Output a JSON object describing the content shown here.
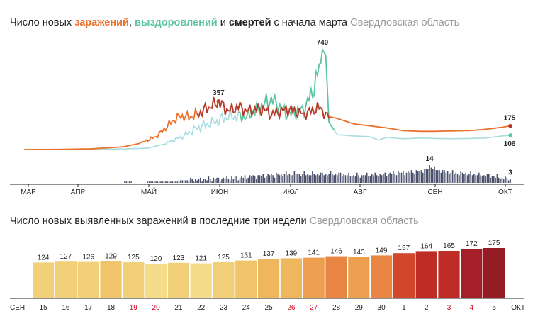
{
  "top": {
    "title_prefix": "Число новых ",
    "infections_word": "заражений",
    "sep1": ", ",
    "recoveries_word": "выздоровлений",
    "sep2": " и ",
    "deaths_word": "смертей",
    "title_suffix": " с начала марта",
    "region": "Свердловская область"
  },
  "bottom": {
    "title": "Число новых выявленных заражений в последние три недели",
    "region": "Свердловская область"
  },
  "colors": {
    "infections": "#e8702a",
    "infections_dark": "#b33a2c",
    "recoveries": "#5cc59f",
    "recoveries_light": "#a8dde0",
    "deaths": "#4a4f6b",
    "weekend": "#d0021b"
  },
  "chart_data": [
    {
      "type": "line",
      "x_ticks": [
        "МАР",
        "АПР",
        "МАЙ",
        "ИЮН",
        "ИЮЛ",
        "АВГ",
        "СЕН",
        "ОКТ"
      ],
      "annotations": [
        {
          "series": "infections",
          "label": "357",
          "value": 357
        },
        {
          "series": "recoveries",
          "label": "740",
          "value": 740
        },
        {
          "series": "infections",
          "label": "175",
          "value": 175
        },
        {
          "series": "recoveries",
          "label": "106",
          "value": 106
        },
        {
          "series": "deaths",
          "label": "14",
          "value": 14
        },
        {
          "series": "deaths",
          "label": "3",
          "value": 3
        }
      ],
      "ylim": [
        0,
        740
      ],
      "infections_keypoints": [
        [
          0,
          0
        ],
        [
          20,
          1
        ],
        [
          40,
          5
        ],
        [
          60,
          20
        ],
        [
          70,
          45
        ],
        [
          80,
          95
        ],
        [
          85,
          150
        ],
        [
          90,
          210
        ],
        [
          95,
          250
        ],
        [
          100,
          240
        ],
        [
          105,
          260
        ],
        [
          110,
          300
        ],
        [
          115,
          330
        ],
        [
          118,
          357
        ],
        [
          122,
          300
        ],
        [
          126,
          290
        ],
        [
          130,
          320
        ],
        [
          135,
          285
        ],
        [
          140,
          295
        ],
        [
          145,
          300
        ],
        [
          150,
          260
        ],
        [
          155,
          280
        ],
        [
          160,
          300
        ],
        [
          170,
          260
        ],
        [
          175,
          290
        ],
        [
          180,
          310
        ],
        [
          183,
          250
        ],
        [
          190,
          230
        ],
        [
          200,
          190
        ],
        [
          210,
          175
        ],
        [
          220,
          160
        ],
        [
          230,
          140
        ],
        [
          240,
          135
        ],
        [
          250,
          135
        ],
        [
          260,
          138
        ],
        [
          270,
          140
        ],
        [
          280,
          150
        ],
        [
          290,
          165
        ],
        [
          295,
          175
        ]
      ],
      "recoveries_keypoints": [
        [
          0,
          0
        ],
        [
          40,
          1
        ],
        [
          60,
          5
        ],
        [
          75,
          10
        ],
        [
          85,
          40
        ],
        [
          95,
          90
        ],
        [
          105,
          160
        ],
        [
          115,
          200
        ],
        [
          125,
          250
        ],
        [
          135,
          240
        ],
        [
          145,
          330
        ],
        [
          150,
          370
        ],
        [
          155,
          320
        ],
        [
          160,
          260
        ],
        [
          170,
          300
        ],
        [
          175,
          430
        ],
        [
          180,
          640
        ],
        [
          181,
          740
        ],
        [
          183,
          700
        ],
        [
          185,
          200
        ],
        [
          190,
          110
        ],
        [
          200,
          100
        ],
        [
          210,
          95
        ],
        [
          215,
          70
        ],
        [
          220,
          90
        ],
        [
          230,
          80
        ],
        [
          240,
          85
        ],
        [
          250,
          82
        ],
        [
          260,
          80
        ],
        [
          270,
          82
        ],
        [
          280,
          85
        ],
        [
          290,
          100
        ],
        [
          295,
          106
        ]
      ],
      "deaths_keypoints": [
        [
          0,
          0
        ],
        [
          60,
          0
        ],
        [
          61,
          1
        ],
        [
          70,
          0
        ],
        [
          80,
          1
        ],
        [
          90,
          1
        ],
        [
          100,
          2
        ],
        [
          110,
          3
        ],
        [
          120,
          3
        ],
        [
          130,
          4
        ],
        [
          140,
          5
        ],
        [
          150,
          6
        ],
        [
          160,
          7
        ],
        [
          170,
          7
        ],
        [
          180,
          7
        ],
        [
          190,
          7
        ],
        [
          200,
          6
        ],
        [
          210,
          6
        ],
        [
          220,
          7
        ],
        [
          230,
          8
        ],
        [
          240,
          9
        ],
        [
          245,
          11
        ],
        [
          246,
          14
        ],
        [
          250,
          10
        ],
        [
          260,
          8
        ],
        [
          270,
          7
        ],
        [
          280,
          6
        ],
        [
          290,
          4
        ],
        [
          295,
          3
        ]
      ]
    },
    {
      "type": "bar",
      "categories": [
        "15",
        "16",
        "17",
        "18",
        "19",
        "20",
        "21",
        "22",
        "23",
        "24",
        "25",
        "26",
        "27",
        "28",
        "29",
        "30",
        "1",
        "2",
        "3",
        "4",
        "5"
      ],
      "values": [
        124,
        127,
        126,
        129,
        125,
        120,
        123,
        121,
        125,
        131,
        137,
        139,
        141,
        146,
        143,
        149,
        157,
        164,
        165,
        172,
        175
      ],
      "weekend_indices": [
        4,
        5,
        11,
        12,
        18,
        19
      ],
      "start_label": "СЕН",
      "end_label": "ОКТ",
      "ylim": [
        0,
        175
      ]
    }
  ]
}
